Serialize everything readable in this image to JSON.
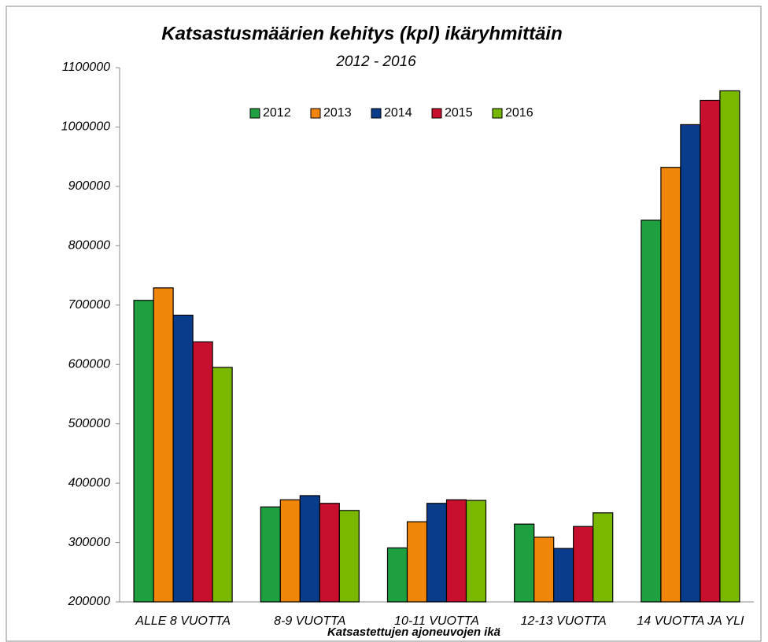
{
  "chart_data": {
    "type": "bar",
    "title": "Katsastusmäärien kehitys (kpl) ikäryhmittäin",
    "subtitle": "2012 - 2016",
    "x_label": "Katsastettujen ajoneuvojen ikä",
    "categories": [
      "ALLE 8 VUOTTA",
      "8-9 VUOTTA",
      "10-11 VUOTTA",
      "12-13 VUOTTA",
      "14 VUOTTA JA YLI"
    ],
    "series": [
      {
        "name": "2012",
        "color": "#1fa040",
        "values": [
          708000,
          360000,
          291000,
          331000,
          843000
        ]
      },
      {
        "name": "2013",
        "color": "#f0870a",
        "values": [
          729000,
          372000,
          335000,
          309000,
          932000
        ]
      },
      {
        "name": "2014",
        "color": "#0a3c8c",
        "values": [
          683000,
          379000,
          366000,
          290000,
          1004000
        ]
      },
      {
        "name": "2015",
        "color": "#c8102e",
        "values": [
          638000,
          366000,
          372000,
          327000,
          1045000
        ]
      },
      {
        "name": "2016",
        "color": "#7ab800",
        "values": [
          595000,
          354000,
          371000,
          350000,
          1061000
        ]
      }
    ],
    "ylim": [
      200000,
      1100000
    ],
    "yticks": [
      200000,
      300000,
      400000,
      500000,
      600000,
      700000,
      800000,
      900000,
      1000000,
      1100000
    ],
    "grid": false,
    "legend": "top"
  }
}
